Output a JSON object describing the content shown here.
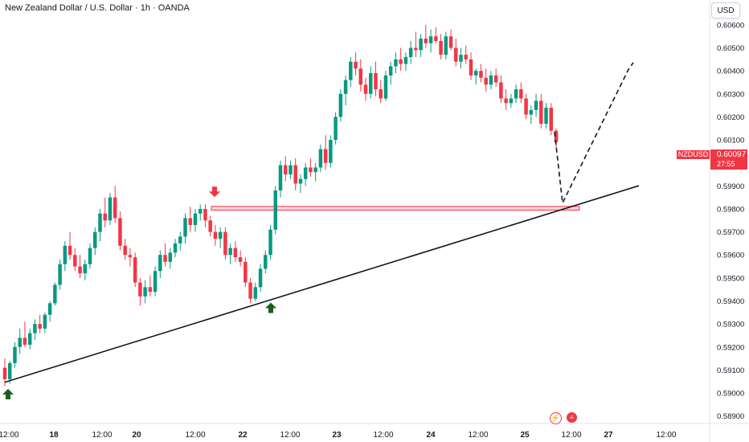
{
  "header": {
    "title": "New Zealand Dollar / U.S. Dollar · 1h · OANDA",
    "currency_button": "USD"
  },
  "price_label": {
    "symbol": "NZDUSD",
    "price": "0.60097",
    "countdown": "27:55",
    "color": "#f23645"
  },
  "axis_icons": [
    "lightning-icon",
    "us-flag-icon"
  ],
  "colors": {
    "up": "#089981",
    "down": "#f23645",
    "zone": "#f23645",
    "trendline": "#131722"
  },
  "chart_data": {
    "type": "candlestick",
    "title": "New Zealand Dollar / U.S. Dollar · 1h · OANDA",
    "xlabel": "",
    "ylabel": "",
    "ylim": [
      0.5885,
      0.6068
    ],
    "grid": false,
    "y_ticks": [
      "0.60600",
      "0.60500",
      "0.60400",
      "0.60300",
      "0.60200",
      "0.60100",
      "0.60000",
      "0.59900",
      "0.59800",
      "0.59700",
      "0.59600",
      "0.59500",
      "0.59400",
      "0.59300",
      "0.59200",
      "0.59100",
      "0.59000",
      "0.58900"
    ],
    "x_ticks": [
      "12:00",
      "18",
      "12:00",
      "20",
      "12:00",
      "22",
      "12:00",
      "23",
      "12:00",
      "24",
      "12:00",
      "25",
      "12:00",
      "27",
      "12:00"
    ],
    "candles": [
      [
        0.5911,
        0.5915,
        0.5903,
        0.5906
      ],
      [
        0.5906,
        0.5914,
        0.5904,
        0.5913
      ],
      [
        0.5913,
        0.5922,
        0.5911,
        0.592
      ],
      [
        0.592,
        0.5928,
        0.5917,
        0.5924
      ],
      [
        0.5924,
        0.5931,
        0.592,
        0.5921
      ],
      [
        0.5921,
        0.5928,
        0.5919,
        0.5926
      ],
      [
        0.5926,
        0.5932,
        0.5923,
        0.593
      ],
      [
        0.593,
        0.5934,
        0.5926,
        0.5928
      ],
      [
        0.5928,
        0.5935,
        0.5926,
        0.5934
      ],
      [
        0.5934,
        0.594,
        0.5931,
        0.5939
      ],
      [
        0.5939,
        0.5948,
        0.5938,
        0.5947
      ],
      [
        0.5947,
        0.5958,
        0.5945,
        0.5956
      ],
      [
        0.5956,
        0.5966,
        0.5953,
        0.5964
      ],
      [
        0.5964,
        0.597,
        0.5958,
        0.596
      ],
      [
        0.596,
        0.5963,
        0.5953,
        0.5955
      ],
      [
        0.5955,
        0.596,
        0.595,
        0.5952
      ],
      [
        0.5952,
        0.5958,
        0.5949,
        0.5956
      ],
      [
        0.5956,
        0.5965,
        0.5954,
        0.5963
      ],
      [
        0.5963,
        0.5972,
        0.596,
        0.597
      ],
      [
        0.597,
        0.598,
        0.5966,
        0.5978
      ],
      [
        0.5978,
        0.5985,
        0.5972,
        0.5975
      ],
      [
        0.5975,
        0.5987,
        0.5973,
        0.5985
      ],
      [
        0.5985,
        0.599,
        0.5974,
        0.5976
      ],
      [
        0.5976,
        0.5979,
        0.5962,
        0.5964
      ],
      [
        0.5964,
        0.5967,
        0.5958,
        0.596
      ],
      [
        0.596,
        0.5963,
        0.5955,
        0.5959
      ],
      [
        0.5959,
        0.5961,
        0.5946,
        0.5948
      ],
      [
        0.5948,
        0.595,
        0.5938,
        0.5942
      ],
      [
        0.5942,
        0.5949,
        0.5939,
        0.5946
      ],
      [
        0.5946,
        0.5951,
        0.5942,
        0.5944
      ],
      [
        0.5944,
        0.5955,
        0.5942,
        0.5953
      ],
      [
        0.5953,
        0.5962,
        0.595,
        0.596
      ],
      [
        0.596,
        0.5965,
        0.5955,
        0.5957
      ],
      [
        0.5957,
        0.5963,
        0.5954,
        0.5961
      ],
      [
        0.5961,
        0.5967,
        0.5959,
        0.5965
      ],
      [
        0.5965,
        0.597,
        0.5962,
        0.5968
      ],
      [
        0.5968,
        0.5978,
        0.5965,
        0.5976
      ],
      [
        0.5976,
        0.5981,
        0.597,
        0.5973
      ],
      [
        0.5973,
        0.598,
        0.597,
        0.5978
      ],
      [
        0.5978,
        0.5982,
        0.5975,
        0.598
      ],
      [
        0.598,
        0.5982,
        0.5972,
        0.5975
      ],
      [
        0.5975,
        0.5977,
        0.5968,
        0.597
      ],
      [
        0.597,
        0.5973,
        0.5964,
        0.5967
      ],
      [
        0.5967,
        0.5972,
        0.5963,
        0.597
      ],
      [
        0.597,
        0.5972,
        0.5958,
        0.596
      ],
      [
        0.596,
        0.5965,
        0.5956,
        0.5963
      ],
      [
        0.5963,
        0.5966,
        0.5957,
        0.5959
      ],
      [
        0.5959,
        0.5962,
        0.5955,
        0.5957
      ],
      [
        0.5957,
        0.5959,
        0.5946,
        0.5948
      ],
      [
        0.5948,
        0.595,
        0.5939,
        0.5941
      ],
      [
        0.5941,
        0.5948,
        0.594,
        0.5946
      ],
      [
        0.5946,
        0.5956,
        0.5944,
        0.5954
      ],
      [
        0.5954,
        0.5962,
        0.5952,
        0.596
      ],
      [
        0.596,
        0.5973,
        0.5958,
        0.5971
      ],
      [
        0.5971,
        0.599,
        0.5969,
        0.5988
      ],
      [
        0.5988,
        0.6001,
        0.5985,
        0.5999
      ],
      [
        0.5999,
        0.6003,
        0.5992,
        0.5995
      ],
      [
        0.5995,
        0.6001,
        0.5993,
        0.5999
      ],
      [
        0.5999,
        0.6002,
        0.5988,
        0.5991
      ],
      [
        0.5991,
        0.5995,
        0.5987,
        0.5993
      ],
      [
        0.5993,
        0.6,
        0.599,
        0.5998
      ],
      [
        0.5998,
        0.6002,
        0.5994,
        0.5996
      ],
      [
        0.5996,
        0.6,
        0.5992,
        0.5998
      ],
      [
        0.5998,
        0.6008,
        0.5996,
        0.6006
      ],
      [
        0.6006,
        0.6012,
        0.5997,
        0.6
      ],
      [
        0.6,
        0.6012,
        0.5998,
        0.601
      ],
      [
        0.601,
        0.6022,
        0.6008,
        0.602
      ],
      [
        0.602,
        0.6032,
        0.6018,
        0.603
      ],
      [
        0.603,
        0.6038,
        0.6025,
        0.6036
      ],
      [
        0.6036,
        0.6046,
        0.6033,
        0.6044
      ],
      [
        0.6044,
        0.6048,
        0.6038,
        0.6041
      ],
      [
        0.6041,
        0.6045,
        0.6031,
        0.6034
      ],
      [
        0.6034,
        0.6037,
        0.6027,
        0.603
      ],
      [
        0.603,
        0.6042,
        0.6028,
        0.6039
      ],
      [
        0.6039,
        0.6044,
        0.6029,
        0.6032
      ],
      [
        0.6032,
        0.6036,
        0.6026,
        0.6028
      ],
      [
        0.6028,
        0.604,
        0.6027,
        0.6038
      ],
      [
        0.6038,
        0.6044,
        0.6034,
        0.6042
      ],
      [
        0.6042,
        0.6048,
        0.6039,
        0.6045
      ],
      [
        0.6045,
        0.605,
        0.604,
        0.6043
      ],
      [
        0.6043,
        0.6048,
        0.604,
        0.6046
      ],
      [
        0.6046,
        0.6053,
        0.6043,
        0.605
      ],
      [
        0.605,
        0.6057,
        0.6046,
        0.6049
      ],
      [
        0.6049,
        0.6056,
        0.6046,
        0.6054
      ],
      [
        0.6054,
        0.606,
        0.605,
        0.6052
      ],
      [
        0.6052,
        0.6058,
        0.6048,
        0.6055
      ],
      [
        0.6055,
        0.6059,
        0.6052,
        0.6053
      ],
      [
        0.6053,
        0.6056,
        0.6045,
        0.6047
      ],
      [
        0.6047,
        0.6057,
        0.6045,
        0.6055
      ],
      [
        0.6055,
        0.6058,
        0.6049,
        0.605
      ],
      [
        0.605,
        0.6054,
        0.6042,
        0.6044
      ],
      [
        0.6044,
        0.605,
        0.6041,
        0.6047
      ],
      [
        0.6047,
        0.6051,
        0.6043,
        0.6045
      ],
      [
        0.6045,
        0.6048,
        0.6036,
        0.6038
      ],
      [
        0.6038,
        0.6041,
        0.6034,
        0.604
      ],
      [
        0.604,
        0.6043,
        0.6035,
        0.6037
      ],
      [
        0.6037,
        0.6041,
        0.6031,
        0.6034
      ],
      [
        0.6034,
        0.604,
        0.6032,
        0.6038
      ],
      [
        0.6038,
        0.6041,
        0.6033,
        0.6035
      ],
      [
        0.6035,
        0.6038,
        0.6026,
        0.6028
      ],
      [
        0.6028,
        0.6032,
        0.6023,
        0.6026
      ],
      [
        0.6026,
        0.603,
        0.6024,
        0.6028
      ],
      [
        0.6028,
        0.6034,
        0.6026,
        0.6032
      ],
      [
        0.6032,
        0.6035,
        0.6026,
        0.6028
      ],
      [
        0.6028,
        0.603,
        0.6019,
        0.6021
      ],
      [
        0.6021,
        0.6025,
        0.6017,
        0.6023
      ],
      [
        0.6023,
        0.603,
        0.602,
        0.6027
      ],
      [
        0.6027,
        0.603,
        0.6015,
        0.6017
      ],
      [
        0.6017,
        0.6026,
        0.6015,
        0.6024
      ],
      [
        0.6024,
        0.6026,
        0.6012,
        0.6014
      ],
      [
        0.6014,
        0.6015,
        0.6006,
        0.6009
      ]
    ],
    "support_zone": {
      "y_low": 0.59795,
      "y_high": 0.59811
    },
    "trendline": {
      "y_start": 0.59047,
      "y_end": 0.59901
    },
    "projection": [
      0.60135,
      0.59826,
      0.60406,
      0.60436
    ],
    "markers": [
      {
        "type": "sell-arrow",
        "price": 0.59855
      },
      {
        "type": "buy-arrow",
        "price": 0.59393
      },
      {
        "type": "buy-arrow",
        "price": 0.59018
      }
    ]
  }
}
